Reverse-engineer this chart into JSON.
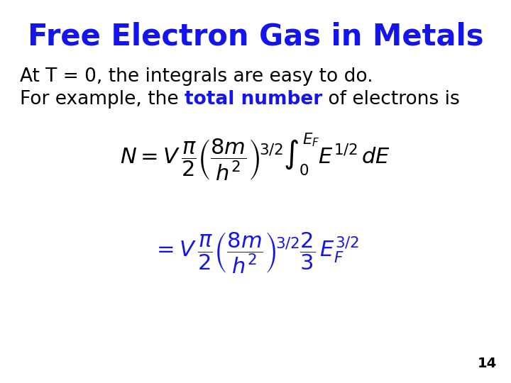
{
  "title": "Free Electron Gas in Metals",
  "title_color": "#1414EE",
  "background_color": "#FFFFFF",
  "black": "#000000",
  "blue": "#1414EE",
  "line1": "At T = 0, the integrals are easy to do.",
  "line2_pre": "For example, the ",
  "line2_highlight": "total number",
  "line2_post": " of electrons is",
  "page_number": "14",
  "title_fs": 30,
  "body_fs": 19,
  "eq_fs": 22
}
